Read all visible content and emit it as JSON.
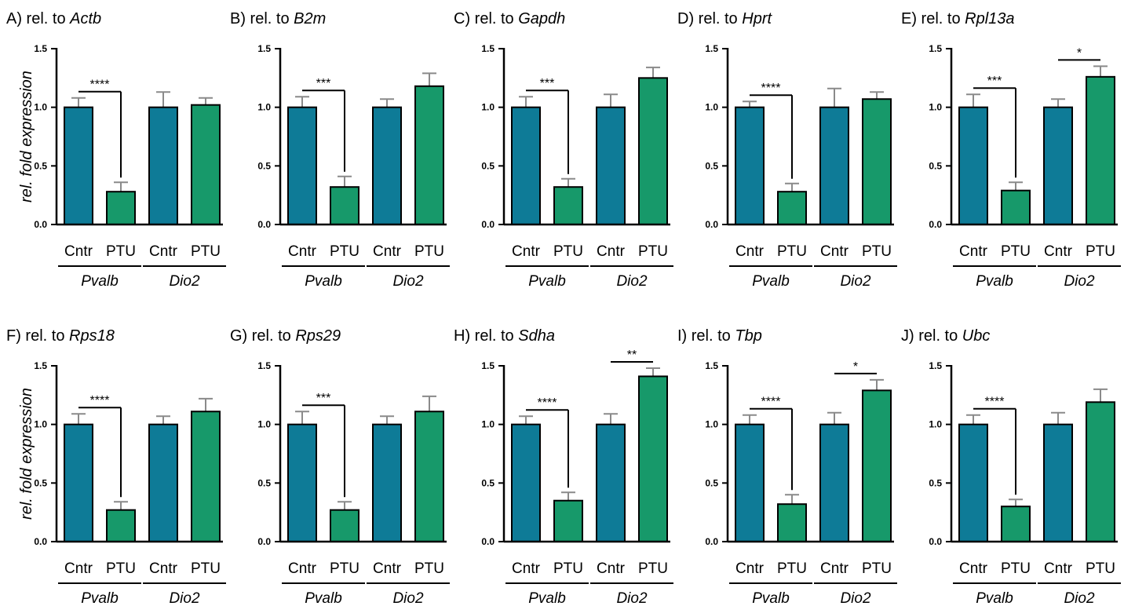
{
  "chart_data": {
    "type": "bar",
    "ylabel": "rel. fold expression",
    "ylim": [
      0,
      1.5
    ],
    "yticks": [
      "0.0",
      "0.5",
      "1.0",
      "1.5"
    ],
    "grid": false,
    "groups": [
      "Pvalb",
      "Dio2"
    ],
    "categories": [
      "Cntr",
      "PTU",
      "Cntr",
      "PTU"
    ],
    "colors": {
      "Cntr": "#0e7b97",
      "PTU": "#17996a",
      "error_bar": "#8a8a8a"
    },
    "panels": [
      {
        "prefix": "A) rel. to ",
        "reference": "Actb",
        "values": [
          1.0,
          0.28,
          1.0,
          1.02
        ],
        "errors": [
          0.08,
          0.08,
          0.13,
          0.06
        ],
        "significance": [
          {
            "between": [
              0,
              1
            ],
            "label": "****"
          }
        ]
      },
      {
        "prefix": "B) rel. to ",
        "reference": "B2m",
        "values": [
          1.0,
          0.32,
          1.0,
          1.18
        ],
        "errors": [
          0.09,
          0.09,
          0.07,
          0.11
        ],
        "significance": [
          {
            "between": [
              0,
              1
            ],
            "label": "***"
          }
        ]
      },
      {
        "prefix": "C) rel. to ",
        "reference": "Gapdh",
        "values": [
          1.0,
          0.32,
          1.0,
          1.25
        ],
        "errors": [
          0.09,
          0.07,
          0.11,
          0.09
        ],
        "significance": [
          {
            "between": [
              0,
              1
            ],
            "label": "***"
          }
        ]
      },
      {
        "prefix": "D) rel. to ",
        "reference": "Hprt",
        "values": [
          1.0,
          0.28,
          1.0,
          1.07
        ],
        "errors": [
          0.05,
          0.07,
          0.16,
          0.06
        ],
        "significance": [
          {
            "between": [
              0,
              1
            ],
            "label": "****"
          }
        ]
      },
      {
        "prefix": "E) rel. to ",
        "reference": "Rpl13a",
        "values": [
          1.0,
          0.29,
          1.0,
          1.26
        ],
        "errors": [
          0.11,
          0.07,
          0.07,
          0.09
        ],
        "significance": [
          {
            "between": [
              0,
              1
            ],
            "label": "***"
          },
          {
            "between": [
              2,
              3
            ],
            "label": "*"
          }
        ]
      },
      {
        "prefix": "F) rel. to ",
        "reference": "Rps18",
        "values": [
          1.0,
          0.27,
          1.0,
          1.11
        ],
        "errors": [
          0.09,
          0.07,
          0.07,
          0.11
        ],
        "significance": [
          {
            "between": [
              0,
              1
            ],
            "label": "****"
          }
        ]
      },
      {
        "prefix": "G) rel. to ",
        "reference": "Rps29",
        "values": [
          1.0,
          0.27,
          1.0,
          1.11
        ],
        "errors": [
          0.11,
          0.07,
          0.07,
          0.13
        ],
        "significance": [
          {
            "between": [
              0,
              1
            ],
            "label": "***"
          }
        ]
      },
      {
        "prefix": "H) rel. to ",
        "reference": "Sdha",
        "values": [
          1.0,
          0.35,
          1.0,
          1.41
        ],
        "errors": [
          0.07,
          0.07,
          0.09,
          0.07
        ],
        "significance": [
          {
            "between": [
              0,
              1
            ],
            "label": "****"
          },
          {
            "between": [
              2,
              3
            ],
            "label": "**"
          }
        ]
      },
      {
        "prefix": "I) rel. to ",
        "reference": "Tbp",
        "values": [
          1.0,
          0.32,
          1.0,
          1.29
        ],
        "errors": [
          0.08,
          0.08,
          0.1,
          0.09
        ],
        "significance": [
          {
            "between": [
              0,
              1
            ],
            "label": "****"
          },
          {
            "between": [
              2,
              3
            ],
            "label": "*"
          }
        ]
      },
      {
        "prefix": "J) rel. to ",
        "reference": "Ubc",
        "values": [
          1.0,
          0.3,
          1.0,
          1.19
        ],
        "errors": [
          0.08,
          0.06,
          0.1,
          0.11
        ],
        "significance": [
          {
            "between": [
              0,
              1
            ],
            "label": "****"
          }
        ]
      }
    ]
  }
}
